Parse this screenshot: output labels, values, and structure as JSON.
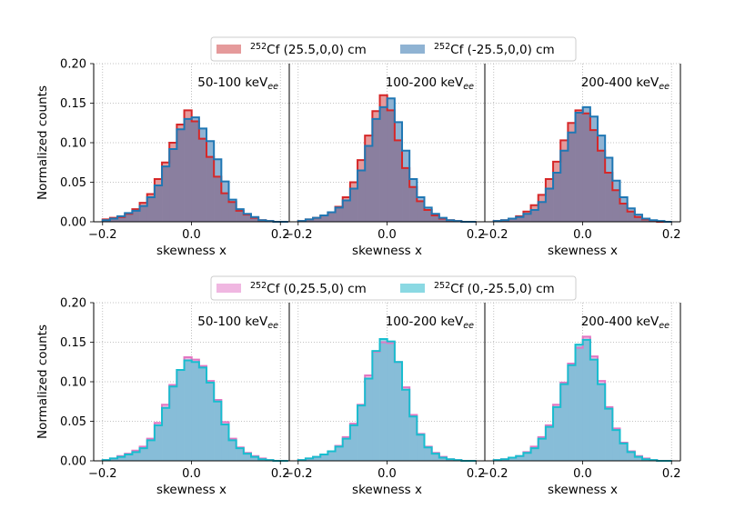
{
  "figure": {
    "xlabel": "skewness x",
    "ylabel": "Normalized counts"
  },
  "chart_data": [
    {
      "type": "step-histogram",
      "legend": {
        "placement": "top-center-above",
        "entries": [
          {
            "sup": "252",
            "text": "Cf (25.5,0,0) cm",
            "fill": "#e59a9b",
            "edge": "#d62728"
          },
          {
            "sup": "252",
            "text": "Cf (-25.5,0,0) cm",
            "fill": "#8fb3d3",
            "edge": "#1f77b4"
          }
        ]
      },
      "xlim": [
        -0.22,
        0.22
      ],
      "ylim": [
        0,
        0.2
      ],
      "xticks": [
        -0.2,
        0.0,
        0.2
      ],
      "xtick_labels": [
        "−0.2",
        "0.0",
        "0.2"
      ],
      "yticks": [
        0,
        0.05,
        0.1,
        0.15,
        0.2
      ],
      "ytick_labels": [
        "0.00",
        "0.05",
        "0.10",
        "0.15",
        "0.20"
      ],
      "bin_width": 0.0167,
      "bins_start": -0.2,
      "overlap_color": "#8a7f9f",
      "panels": [
        {
          "label": "50-100 keV",
          "sub": "ee",
          "series": [
            {
              "name": "252Cf (25.5,0,0) cm",
              "values": [
                0.003,
                0.005,
                0.006,
                0.01,
                0.016,
                0.024,
                0.035,
                0.054,
                0.075,
                0.1,
                0.123,
                0.141,
                0.127,
                0.105,
                0.082,
                0.057,
                0.036,
                0.025,
                0.014,
                0.009,
                0.005,
                0.002,
                0.001,
                0.0,
                0.0
              ]
            },
            {
              "name": "252Cf (-25.5,0,0) cm",
              "values": [
                0.002,
                0.004,
                0.007,
                0.011,
                0.014,
                0.02,
                0.031,
                0.046,
                0.07,
                0.092,
                0.117,
                0.13,
                0.132,
                0.118,
                0.102,
                0.079,
                0.051,
                0.028,
                0.016,
                0.01,
                0.006,
                0.002,
                0.001,
                0.0,
                0.0
              ]
            }
          ]
        },
        {
          "label": "100-200 keV",
          "sub": "ee",
          "series": [
            {
              "name": "252Cf (25.5,0,0) cm",
              "values": [
                0.001,
                0.003,
                0.005,
                0.008,
                0.012,
                0.019,
                0.031,
                0.05,
                0.078,
                0.109,
                0.14,
                0.16,
                0.141,
                0.103,
                0.068,
                0.044,
                0.026,
                0.015,
                0.008,
                0.004,
                0.002,
                0.001,
                0.0,
                0.0
              ]
            },
            {
              "name": "252Cf (-25.5,0,0) cm",
              "values": [
                0.001,
                0.003,
                0.005,
                0.008,
                0.012,
                0.018,
                0.027,
                0.042,
                0.065,
                0.096,
                0.13,
                0.145,
                0.156,
                0.126,
                0.09,
                0.054,
                0.031,
                0.018,
                0.01,
                0.005,
                0.002,
                0.001,
                0.0,
                0.0
              ]
            }
          ]
        },
        {
          "label": "200-400 keV",
          "sub": "ee",
          "series": [
            {
              "name": "252Cf (25.5,0,0) cm",
              "values": [
                0.001,
                0.002,
                0.004,
                0.007,
                0.013,
                0.021,
                0.034,
                0.054,
                0.076,
                0.103,
                0.125,
                0.141,
                0.137,
                0.116,
                0.09,
                0.062,
                0.04,
                0.023,
                0.013,
                0.006,
                0.003,
                0.001,
                0.0,
                0.0
              ]
            },
            {
              "name": "252Cf (-25.5,0,0) cm",
              "values": [
                0.001,
                0.002,
                0.004,
                0.006,
                0.01,
                0.015,
                0.025,
                0.042,
                0.062,
                0.09,
                0.113,
                0.138,
                0.145,
                0.133,
                0.109,
                0.081,
                0.052,
                0.031,
                0.017,
                0.009,
                0.004,
                0.002,
                0.001,
                0.0
              ]
            }
          ]
        }
      ]
    },
    {
      "type": "step-histogram",
      "legend": {
        "placement": "top-center-above",
        "entries": [
          {
            "sup": "252",
            "text": "Cf (0,25.5,0) cm",
            "fill": "#f0b7e1",
            "edge": "#e377c2"
          },
          {
            "sup": "252",
            "text": "Cf (0,-25.5,0) cm",
            "fill": "#8bd9e3",
            "edge": "#17becf"
          }
        ]
      },
      "xlim": [
        -0.22,
        0.22
      ],
      "ylim": [
        0,
        0.2
      ],
      "xticks": [
        -0.2,
        0.0,
        0.2
      ],
      "xtick_labels": [
        "−0.2",
        "0.0",
        "0.2"
      ],
      "yticks": [
        0,
        0.05,
        0.1,
        0.15,
        0.2
      ],
      "ytick_labels": [
        "0.00",
        "0.05",
        "0.10",
        "0.15",
        "0.20"
      ],
      "bin_width": 0.0167,
      "bins_start": -0.2,
      "overlap_color": "#87bdd8",
      "panels": [
        {
          "label": "50-100 keV",
          "sub": "ee",
          "series": [
            {
              "name": "252Cf (0,25.5,0) cm",
              "values": [
                0.001,
                0.003,
                0.006,
                0.009,
                0.013,
                0.018,
                0.028,
                0.048,
                0.071,
                0.096,
                0.115,
                0.131,
                0.128,
                0.12,
                0.101,
                0.077,
                0.049,
                0.028,
                0.017,
                0.01,
                0.006,
                0.003,
                0.001,
                0.0,
                0.0
              ]
            },
            {
              "name": "252Cf (0,-25.5,0) cm",
              "values": [
                0.001,
                0.003,
                0.005,
                0.008,
                0.011,
                0.016,
                0.026,
                0.045,
                0.067,
                0.094,
                0.115,
                0.127,
                0.125,
                0.118,
                0.099,
                0.075,
                0.046,
                0.026,
                0.016,
                0.009,
                0.005,
                0.002,
                0.001,
                0.0,
                0.0
              ]
            }
          ]
        },
        {
          "label": "100-200 keV",
          "sub": "ee",
          "series": [
            {
              "name": "252Cf (0,25.5,0) cm",
              "values": [
                0.001,
                0.003,
                0.005,
                0.008,
                0.012,
                0.019,
                0.03,
                0.047,
                0.071,
                0.108,
                0.138,
                0.15,
                0.149,
                0.125,
                0.093,
                0.058,
                0.034,
                0.018,
                0.01,
                0.005,
                0.002,
                0.001,
                0.0,
                0.0
              ]
            },
            {
              "name": "252Cf (0,-25.5,0) cm",
              "values": [
                0.001,
                0.003,
                0.005,
                0.008,
                0.012,
                0.018,
                0.028,
                0.045,
                0.07,
                0.104,
                0.139,
                0.154,
                0.151,
                0.125,
                0.09,
                0.056,
                0.033,
                0.017,
                0.009,
                0.004,
                0.002,
                0.001,
                0.0,
                0.0
              ]
            }
          ]
        },
        {
          "label": "200-400 keV",
          "sub": "ee",
          "series": [
            {
              "name": "252Cf (0,25.5,0) cm",
              "values": [
                0.001,
                0.002,
                0.004,
                0.006,
                0.011,
                0.018,
                0.03,
                0.045,
                0.071,
                0.099,
                0.123,
                0.143,
                0.157,
                0.132,
                0.101,
                0.068,
                0.041,
                0.023,
                0.012,
                0.006,
                0.003,
                0.001,
                0.0,
                0.0
              ]
            },
            {
              "name": "252Cf (0,-25.5,0) cm",
              "values": [
                0.001,
                0.002,
                0.004,
                0.006,
                0.01,
                0.016,
                0.028,
                0.043,
                0.068,
                0.097,
                0.121,
                0.147,
                0.153,
                0.128,
                0.097,
                0.066,
                0.039,
                0.022,
                0.011,
                0.005,
                0.002,
                0.001,
                0.0,
                0.0
              ]
            }
          ]
        }
      ]
    }
  ]
}
